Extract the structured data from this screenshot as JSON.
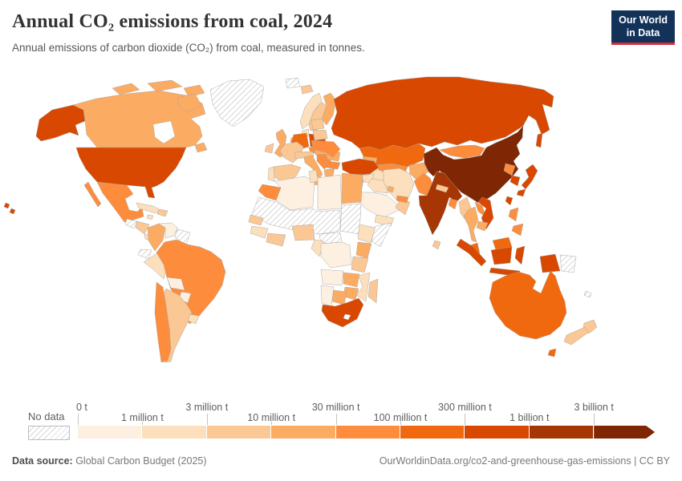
{
  "header": {
    "title": "Annual CO₂ emissions from coal, 2024",
    "subtitle": "Annual emissions of carbon dioxide (CO₂) from coal, measured in tonnes.",
    "logo": {
      "line1": "Our World",
      "line2": "in Data",
      "bg_color": "#12325a",
      "accent_color": "#cf303e"
    }
  },
  "legend": {
    "no_data_label": "No data"
  },
  "footer": {
    "datasource_label": "Data source:",
    "datasource_value": " Global Carbon Budget (2025)",
    "attribution": "OurWorldinData.org/co2-and-greenhouse-gas-emissions | CC BY"
  },
  "chart_data": {
    "type": "choropleth",
    "title": "Annual CO₂ emissions from coal, 2024",
    "unit": "tonnes",
    "year": 2024,
    "legend_position": "bottom",
    "no_data_pattern": "diagonal-hatch",
    "bin_labels": [
      "0 t",
      "1 million t",
      "3 million t",
      "10 million t",
      "30 million t",
      "100 million t",
      "300 million t",
      "1 billion t",
      "3 billion t"
    ],
    "bin_colors": [
      "#fdf0e0",
      "#fcdfbc",
      "#fbc794",
      "#fcab63",
      "#fd8d3c",
      "#f1690e",
      "#d94801",
      "#a63603",
      "#7f2704"
    ],
    "country_bins": {
      "united-states": 6,
      "canada": 3,
      "greenland": -1,
      "mexico": 4,
      "guatemala": -1,
      "honduras-nicaragua": 2,
      "costa-rica-panama": 1,
      "cuba": 1,
      "hispaniola": 2,
      "jamaica": 1,
      "colombia": 3,
      "venezuela": 0,
      "guyana-suriname": -1,
      "ecuador": -1,
      "peru": 1,
      "brazil": 4,
      "bolivia": 0,
      "paraguay": 0,
      "chile": 4,
      "argentina": 2,
      "uruguay": 1,
      "iceland": 2,
      "svalbard": -1,
      "norway": 1,
      "sweden": 2,
      "finland": 3,
      "denmark": 1,
      "uk": 3,
      "ireland": 2,
      "netherlands-belgium": 3,
      "germany": 5,
      "poland": 6,
      "france": 2,
      "spain": 2,
      "portugal": 1,
      "italy": 3,
      "czechia": 4,
      "austria-switzerland": 2,
      "hungary": 3,
      "balkans": 4,
      "greece": 3,
      "romania": 3,
      "bulgaria": 4,
      "ukraine": 4,
      "belarus": 2,
      "baltics": 2,
      "russia": 6,
      "kazakhstan": 5,
      "central-asia": 4,
      "turkmenistan": 1,
      "caucasus": 3,
      "turkey": 6,
      "syria": 1,
      "iraq": 1,
      "iran": 1,
      "israel-jordan": 3,
      "kuwait": 3,
      "saudi-arabia": 0,
      "yemen": 1,
      "oman": 2,
      "uae": 4,
      "afghanistan": 3,
      "pakistan": 4,
      "india": 7,
      "nepal": 2,
      "bangladesh": 4,
      "sri-lanka": 2,
      "china": 8,
      "mongolia": 4,
      "north-korea": 4,
      "south-korea": 6,
      "japan": 6,
      "taiwan": 6,
      "myanmar": 2,
      "thailand": 3,
      "laos": 4,
      "vietnam": 6,
      "cambodia": 3,
      "malaysia": 5,
      "indonesia": 6,
      "papua-new-guinea": -1,
      "philippines": 4,
      "morocco": 4,
      "algeria": 0,
      "tunisia": 1,
      "libya": 0,
      "egypt": 3,
      "sahel": -1,
      "sudan": -1,
      "car-south-sudan": -1,
      "ethiopia": 1,
      "somalia": -1,
      "kenya": 3,
      "senegal": 2,
      "guinea-region": 1,
      "ivory-ghana": 2,
      "nigeria": 2,
      "cameroon-gabon": 1,
      "drc": 0,
      "tanzania": 2,
      "angola": 0,
      "zambia": 3,
      "mozambique": 1,
      "zimbabwe": 3,
      "botswana": 3,
      "namibia": 0,
      "south-africa": 6,
      "madagascar": 2,
      "australia": 5,
      "new-zealand": 2,
      "new-caledonia": -1
    }
  }
}
